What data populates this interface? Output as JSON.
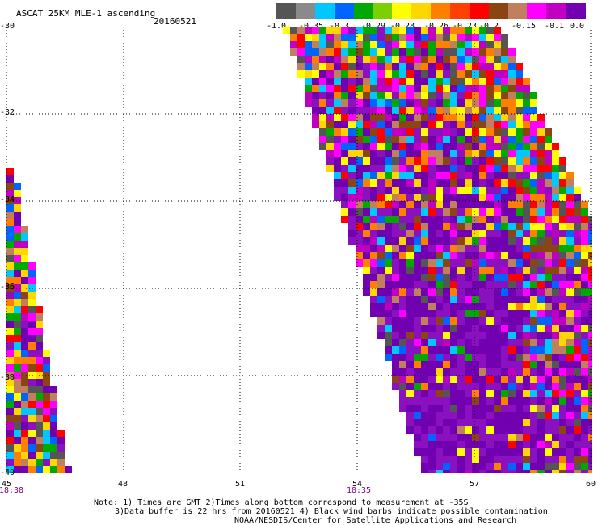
{
  "title": "ASCAT 25KM MLE-1 ascending",
  "date": "20160521",
  "colorbar": {
    "colors": [
      "#555555",
      "#8a8a8a",
      "#00c8ff",
      "#0064ff",
      "#00a800",
      "#7ad000",
      "#ffff00",
      "#ffd700",
      "#ff8000",
      "#ff4000",
      "#ff0000",
      "#8b4513",
      "#c08060",
      "#ff00ff",
      "#c000c0",
      "#7000b0"
    ],
    "labels": [
      "-1.0",
      "-0.35",
      "-0.3",
      "-0.29",
      "-0.28",
      "-0.26",
      "-0.23",
      "-0.2",
      "-0.15",
      "-0.1",
      "0.0"
    ]
  },
  "y_axis": {
    "labels": [
      "-30",
      "-32",
      "-34",
      "-36",
      "-38",
      "-40"
    ]
  },
  "x_axis": {
    "labels": [
      "45",
      "48",
      "51",
      "54",
      "57",
      "60"
    ]
  },
  "time_labels": [
    "18:38",
    "18:35"
  ],
  "notes": [
    "Note: 1) Times are GMT 2)Times along bottom correspond to measurement at -35S",
    "3)Data buffer is 22 hrs from 20160521 4) Black wind barbs indicate possible contamination",
    "NOAA/NESDIS/Center for Satellite Applications and Research"
  ]
}
